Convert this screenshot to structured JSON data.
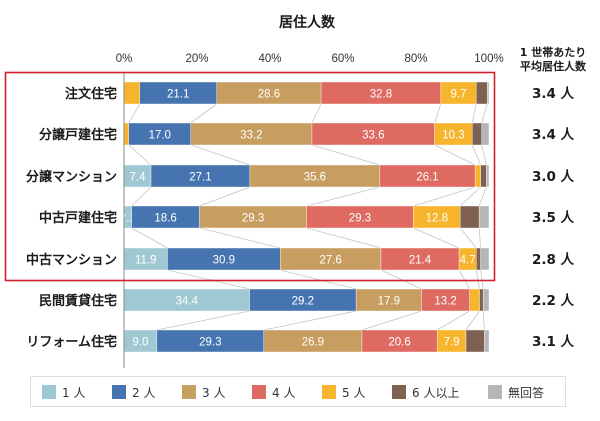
{
  "chart_data": {
    "type": "bar",
    "orientation": "horizontal-stacked-100",
    "title": "居住人数",
    "xlabel": "",
    "ylabel": "",
    "xlim": [
      0,
      100
    ],
    "x_ticks": [
      "0%",
      "20%",
      "40%",
      "60%",
      "80%",
      "100%"
    ],
    "right_column_header": [
      "1 世帯あたり",
      "平均居住人数"
    ],
    "legend": {
      "placement": "bottom",
      "entries": [
        {
          "name": "1 人",
          "color": "#9fc8d2"
        },
        {
          "name": "2 人",
          "color": "#4674b0"
        },
        {
          "name": "3 人",
          "color": "#c89d60"
        },
        {
          "name": "4 人",
          "color": "#de6a62"
        },
        {
          "name": "5 人",
          "color": "#f6b52c"
        },
        {
          "name": "6 人以上",
          "color": "#7e6150"
        },
        {
          "name": "無回答",
          "color": "#b6b6b6"
        }
      ]
    },
    "highlight_box": {
      "color": "#d0202a",
      "categories": [
        "注文住宅",
        "分譲戸建住宅",
        "分譲マンション",
        "中古戸建住宅",
        "中古マンション"
      ]
    },
    "categories": [
      "注文住宅",
      "分譲戸建住宅",
      "分譲マンション",
      "中古戸建住宅",
      "中古マンション",
      "民間賃貸住宅",
      "リフォーム住宅"
    ],
    "series": [
      {
        "name": "1 人",
        "values": [
          4.3,
          1.3,
          7.4,
          2.1,
          11.9,
          34.4,
          9.0
        ],
        "labels": [
          "",
          "",
          "7.4",
          "2.1",
          "11.9",
          "34.4",
          "9.0"
        ],
        "segment_colors": [
          "#f6b52c",
          "#f6b52c",
          null,
          null,
          null,
          null,
          null
        ]
      },
      {
        "name": "2 人",
        "values": [
          21.1,
          17.0,
          27.1,
          18.6,
          30.9,
          29.2,
          29.3
        ],
        "labels": [
          "21.1",
          "17.0",
          "27.1",
          "18.6",
          "30.9",
          "29.2",
          "29.3"
        ]
      },
      {
        "name": "3 人",
        "values": [
          28.6,
          33.2,
          35.6,
          29.3,
          27.6,
          17.9,
          26.9
        ],
        "labels": [
          "28.6",
          "33.2",
          "35.6",
          "29.3",
          "27.6",
          "17.9",
          "26.9"
        ]
      },
      {
        "name": "4 人",
        "values": [
          32.8,
          33.6,
          26.1,
          29.3,
          21.4,
          13.2,
          20.6
        ],
        "labels": [
          "32.8",
          "33.6",
          "26.1",
          "29.3",
          "21.4",
          "13.2",
          "20.6"
        ]
      },
      {
        "name": "5 人",
        "values": [
          9.7,
          10.3,
          1.5,
          12.8,
          4.7,
          2.7,
          7.9
        ],
        "labels": [
          "9.7",
          "10.3",
          "",
          "12.8",
          "4.7",
          "",
          "7.9"
        ]
      },
      {
        "name": "6 人以上",
        "values": [
          3.0,
          2.6,
          1.6,
          5.2,
          1.2,
          1.0,
          5.0
        ],
        "labels": [
          "",
          "",
          "",
          "",
          "",
          "",
          ""
        ]
      },
      {
        "name": "無回答",
        "values": [
          0.5,
          2.0,
          0.7,
          2.7,
          2.3,
          1.6,
          1.3
        ],
        "labels": [
          "",
          "",
          "",
          "",
          "",
          "",
          ""
        ]
      }
    ],
    "average_residents": [
      "3.4 人",
      "3.4 人",
      "3.0 人",
      "3.5 人",
      "2.8 人",
      "2.2 人",
      "3.1 人"
    ]
  }
}
